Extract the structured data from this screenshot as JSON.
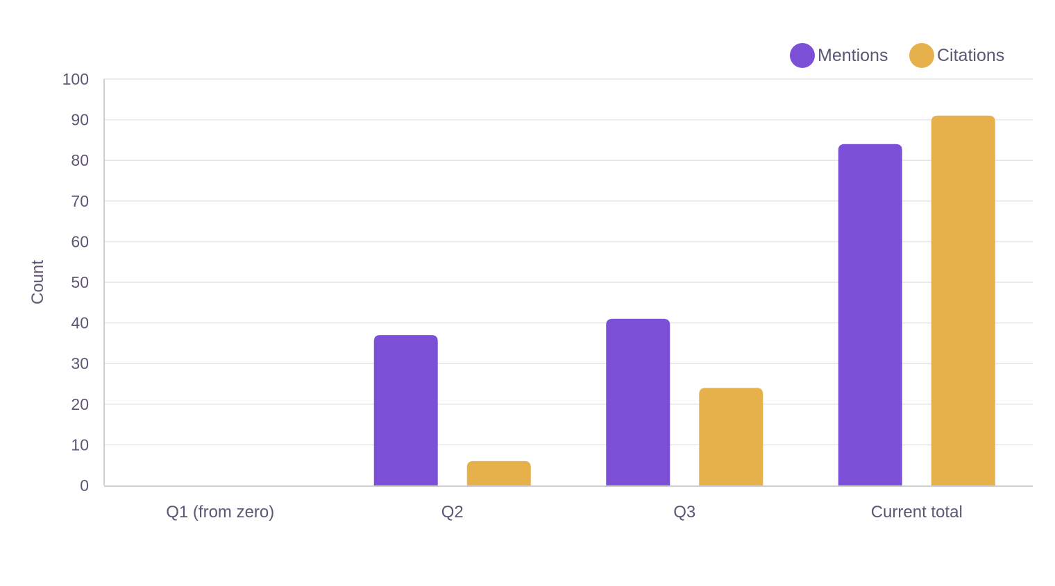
{
  "chart_data": {
    "type": "bar",
    "categories": [
      "Q1 (from zero)",
      "Q2",
      "Q3",
      "Current total"
    ],
    "series": [
      {
        "name": "Mentions",
        "color": "#7b50d6",
        "values": [
          0,
          37,
          41,
          84
        ]
      },
      {
        "name": "Citations",
        "color": "#e6b04b",
        "values": [
          0,
          6,
          24,
          91
        ]
      }
    ],
    "ylabel": "Count",
    "xlabel": "",
    "ylim": [
      0,
      100
    ],
    "yticks": [
      0,
      10,
      20,
      30,
      40,
      50,
      60,
      70,
      80,
      90,
      100
    ],
    "grid": true,
    "legend": "top-right"
  }
}
